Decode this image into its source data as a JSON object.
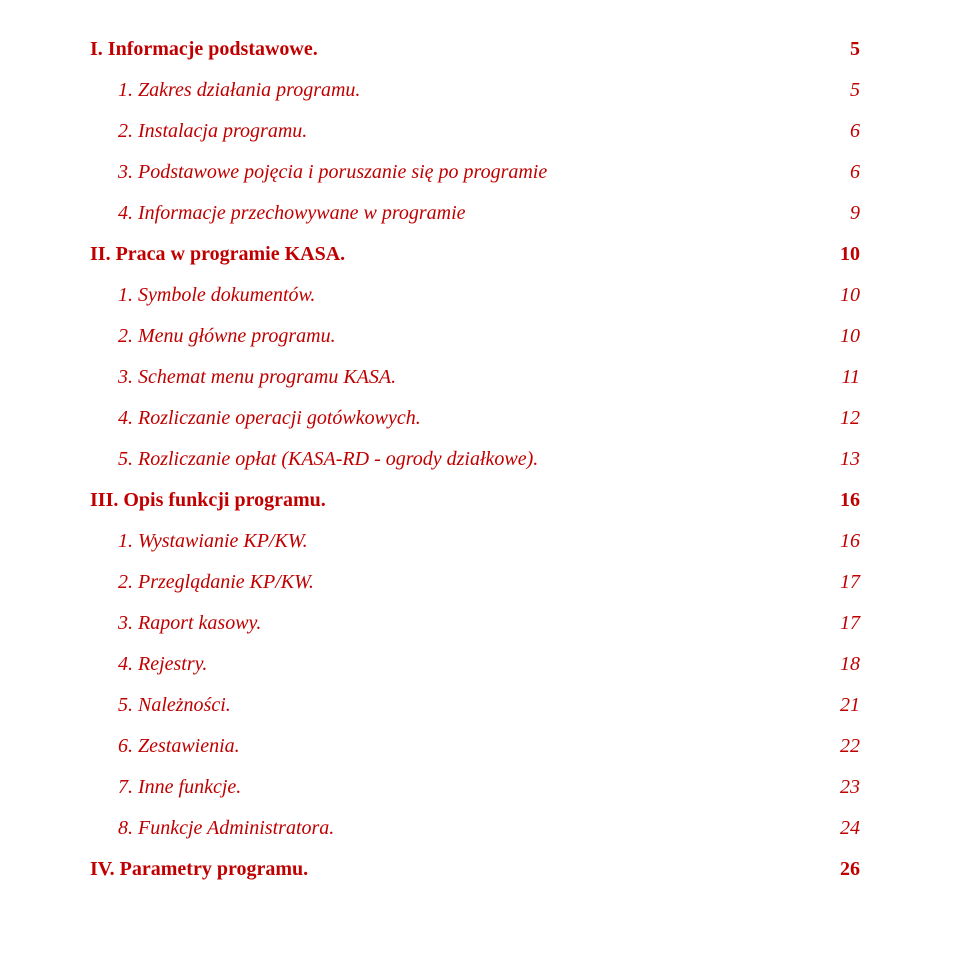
{
  "text_color": "#c00000",
  "background_color": "#ffffff",
  "font_family": "Times New Roman",
  "heading_fontsize": 20,
  "sub_fontsize": 20,
  "sections": [
    {
      "title": "I. Informacje podstawowe.",
      "page": "5",
      "items": [
        {
          "label": "1. Zakres działania programu.",
          "page": "5"
        },
        {
          "label": "2. Instalacja programu.",
          "page": "6"
        },
        {
          "label": "3. Podstawowe pojęcia i poruszanie się po programie",
          "page": "6"
        },
        {
          "label": "4. Informacje przechowywane w programie",
          "page": "9"
        }
      ]
    },
    {
      "title": "II. Praca w programie KASA.",
      "page": "10",
      "items": [
        {
          "label": "1. Symbole dokumentów.",
          "page": "10"
        },
        {
          "label": "2. Menu główne programu.",
          "page": "10"
        },
        {
          "label": "3. Schemat menu programu KASA.",
          "page": "11"
        },
        {
          "label": "4. Rozliczanie operacji gotówkowych.",
          "page": "12"
        },
        {
          "label": "5. Rozliczanie opłat (KASA-RD -  ogrody działkowe).",
          "page": "13"
        }
      ]
    },
    {
      "title": "III. Opis funkcji programu.",
      "page": "16",
      "items": [
        {
          "label": "1. Wystawianie KP/KW.",
          "page": "16"
        },
        {
          "label": "2. Przeglądanie KP/KW.",
          "page": "17"
        },
        {
          "label": "3. Raport kasowy.",
          "page": "17"
        },
        {
          "label": "4. Rejestry.",
          "page": "18"
        },
        {
          "label": "5. Należności.",
          "page": "21"
        },
        {
          "label": "6. Zestawienia.",
          "page": "22"
        },
        {
          "label": "7. Inne funkcje.",
          "page": "23"
        },
        {
          "label": "8. Funkcje Administratora.",
          "page": "24"
        }
      ]
    },
    {
      "title": "IV. Parametry programu.",
      "page": "26",
      "items": []
    }
  ]
}
